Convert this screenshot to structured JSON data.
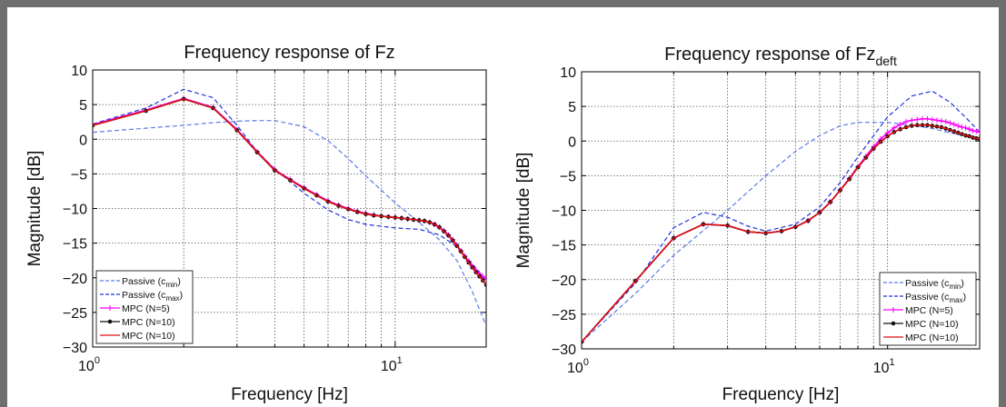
{
  "chart_data": [
    {
      "type": "line",
      "title": "Frequency response of Fz",
      "title_subscript": "",
      "xlabel": "Frequency [Hz]",
      "ylabel": "Magnitude [dB]",
      "xscale": "log",
      "xlim": [
        1,
        20
      ],
      "ylim": [
        -30,
        10
      ],
      "xticks": [
        1,
        10
      ],
      "xtick_labels": [
        {
          "base": "10",
          "exp": "0"
        },
        {
          "base": "10",
          "exp": "1"
        }
      ],
      "yticks": [
        10,
        5,
        0,
        -5,
        -10,
        -15,
        -20,
        -25,
        -30
      ],
      "ytick_labels": [
        "10",
        "5",
        "0",
        "−5",
        "−10",
        "−15",
        "−20",
        "−25",
        "−30"
      ],
      "grid": true,
      "legend_position": "bottom-left",
      "series": [
        {
          "name": "Passive (c",
          "name_subscript": "min",
          "name_suffix": ")",
          "color": "#5b7be8",
          "style": "dashed",
          "marker": "none",
          "x": [
            1,
            1.5,
            2,
            2.5,
            3,
            3.5,
            4,
            5,
            6,
            7,
            8,
            10,
            12,
            14,
            16,
            18,
            20
          ],
          "y": [
            1,
            1.6,
            2,
            2.4,
            2.6,
            2.7,
            2.7,
            1.8,
            -0.2,
            -2.8,
            -5.3,
            -9.2,
            -12,
            -14.5,
            -17.5,
            -22,
            -27
          ]
        },
        {
          "name": "Passive (c",
          "name_subscript": "max",
          "name_suffix": ")",
          "color": "#2233dd",
          "style": "dashed",
          "marker": "none",
          "x": [
            1,
            1.5,
            2,
            2.5,
            3,
            3.5,
            4,
            5,
            6,
            7,
            8,
            10,
            12,
            14,
            16,
            18,
            20
          ],
          "y": [
            2.2,
            4.5,
            7.2,
            6,
            2,
            -1.8,
            -4.3,
            -7.8,
            -10.2,
            -11.6,
            -12.3,
            -12.8,
            -13,
            -13.8,
            -15.5,
            -18,
            -20.5
          ]
        },
        {
          "name": "MPC (N=5)",
          "color": "#ff00ff",
          "style": "solid",
          "marker": "plus",
          "x": [
            1,
            1.5,
            2,
            2.5,
            3,
            3.5,
            4,
            4.5,
            5,
            5.5,
            6,
            6.5,
            7,
            7.5,
            8,
            8.5,
            9,
            9.5,
            10,
            10.5,
            11,
            11.5,
            12,
            12.5,
            13,
            13.5,
            14,
            14.5,
            15,
            15.5,
            16,
            16.5,
            17,
            17.5,
            18,
            18.5,
            19,
            19.5,
            20
          ],
          "y": [
            2.1,
            4.2,
            5.9,
            4.6,
            1.4,
            -1.8,
            -4.4,
            -5.8,
            -7,
            -8,
            -8.9,
            -9.5,
            -10,
            -10.4,
            -10.7,
            -10.9,
            -11.1,
            -11.2,
            -11.3,
            -11.4,
            -11.5,
            -11.6,
            -11.7,
            -11.8,
            -12,
            -12.3,
            -12.7,
            -13.2,
            -13.8,
            -14.5,
            -15.3,
            -16.1,
            -16.9,
            -17.6,
            -18.3,
            -18.9,
            -19.4,
            -19.8,
            -20.2
          ]
        },
        {
          "name": "MPC (N=10)",
          "color": "#111111",
          "style": "solid",
          "marker": "dot",
          "x": [
            1,
            1.5,
            2,
            2.5,
            3,
            3.5,
            4,
            4.5,
            5,
            5.5,
            6,
            6.5,
            7,
            7.5,
            8,
            8.5,
            9,
            9.5,
            10,
            10.5,
            11,
            11.5,
            12,
            12.5,
            13,
            13.5,
            14,
            14.5,
            15,
            15.5,
            16,
            16.5,
            17,
            17.5,
            18,
            18.5,
            19,
            19.5,
            20
          ],
          "y": [
            2,
            4.1,
            5.8,
            4.5,
            1.3,
            -1.9,
            -4.5,
            -5.9,
            -7.1,
            -8.1,
            -9,
            -9.6,
            -10.1,
            -10.5,
            -10.8,
            -11,
            -11.1,
            -11.2,
            -11.3,
            -11.4,
            -11.5,
            -11.6,
            -11.7,
            -11.8,
            -12,
            -12.3,
            -12.7,
            -13.3,
            -13.9,
            -14.6,
            -15.4,
            -16.2,
            -17,
            -17.8,
            -18.5,
            -19.2,
            -19.8,
            -20.4,
            -21
          ]
        },
        {
          "name": "MPC (N=10)",
          "color": "#dd1111",
          "style": "solid",
          "marker": "none",
          "x": [
            1,
            1.5,
            2,
            2.5,
            3,
            3.5,
            4,
            4.5,
            5,
            5.5,
            6,
            6.5,
            7,
            7.5,
            8,
            8.5,
            9,
            9.5,
            10,
            10.5,
            11,
            11.5,
            12,
            12.5,
            13,
            13.5,
            14,
            14.5,
            15,
            15.5,
            16,
            16.5,
            17,
            17.5,
            18,
            18.5,
            19,
            19.5,
            20
          ],
          "y": [
            2,
            4.1,
            5.8,
            4.5,
            1.3,
            -1.9,
            -4.5,
            -5.9,
            -7.1,
            -8.1,
            -9,
            -9.6,
            -10.1,
            -10.5,
            -10.8,
            -11,
            -11.1,
            -11.2,
            -11.3,
            -11.4,
            -11.5,
            -11.6,
            -11.7,
            -11.8,
            -12,
            -12.3,
            -12.7,
            -13.3,
            -13.9,
            -14.6,
            -15.4,
            -16.2,
            -17,
            -17.8,
            -18.5,
            -19.2,
            -19.8,
            -20.4,
            -21
          ]
        }
      ]
    },
    {
      "type": "line",
      "title": "Frequency response of Fz",
      "title_subscript": "deft",
      "xlabel": "Frequency [Hz]",
      "ylabel": "Magnitude [dB]",
      "xscale": "log",
      "xlim": [
        1,
        20
      ],
      "ylim": [
        -30,
        10
      ],
      "xticks": [
        1,
        10
      ],
      "xtick_labels": [
        {
          "base": "10",
          "exp": "0"
        },
        {
          "base": "10",
          "exp": "1"
        }
      ],
      "yticks": [
        10,
        5,
        0,
        -5,
        -10,
        -15,
        -20,
        -25,
        -30
      ],
      "ytick_labels": [
        "10",
        "5",
        "0",
        "−5",
        "−10",
        "−15",
        "−20",
        "−25",
        "−30"
      ],
      "grid": true,
      "legend_position": "bottom-right",
      "series": [
        {
          "name": "Passive (c",
          "name_subscript": "min",
          "name_suffix": ")",
          "color": "#5b7be8",
          "style": "dashed",
          "marker": "none",
          "x": [
            1,
            1.5,
            2,
            3,
            4,
            5,
            6,
            7,
            8,
            10,
            12,
            14,
            16,
            18,
            20
          ],
          "y": [
            -29,
            -22,
            -16.5,
            -10,
            -5,
            -1.5,
            0.8,
            2.2,
            2.7,
            2.7,
            2.3,
            1.8,
            1.2,
            0.7,
            0.3
          ]
        },
        {
          "name": "Passive (c",
          "name_subscript": "max",
          "name_suffix": ")",
          "color": "#2233dd",
          "style": "dashed",
          "marker": "none",
          "x": [
            1,
            1.5,
            2,
            2.5,
            3,
            3.5,
            4,
            5,
            6,
            7,
            8,
            10,
            12,
            14,
            16,
            18,
            20
          ],
          "y": [
            -29,
            -20.5,
            -12.5,
            -10.3,
            -11,
            -12.3,
            -13,
            -12,
            -9.5,
            -6,
            -2.3,
            3.5,
            6.5,
            7.2,
            5.6,
            3.4,
            1.3
          ]
        },
        {
          "name": "MPC (N=5)",
          "color": "#ff00ff",
          "style": "solid",
          "marker": "plus",
          "x": [
            1,
            1.5,
            2,
            2.5,
            3,
            3.5,
            4,
            4.5,
            5,
            5.5,
            6,
            6.5,
            7,
            7.5,
            8,
            8.5,
            9,
            9.5,
            10,
            10.5,
            11,
            11.5,
            12,
            12.5,
            13,
            13.5,
            14,
            14.5,
            15,
            15.5,
            16,
            16.5,
            17,
            17.5,
            18,
            18.5,
            19,
            19.5,
            20
          ],
          "y": [
            -29,
            -20.2,
            -14,
            -12,
            -12.2,
            -13.1,
            -13.3,
            -13,
            -12.4,
            -11.5,
            -10.3,
            -8.8,
            -7.1,
            -5.4,
            -3.7,
            -2.2,
            -0.8,
            0.3,
            1.2,
            1.9,
            2.4,
            2.8,
            3,
            3.1,
            3.2,
            3.2,
            3.1,
            3,
            2.9,
            2.8,
            2.6,
            2.4,
            2.2,
            2,
            1.9,
            1.7,
            1.5,
            1.4,
            1.3
          ]
        },
        {
          "name": "MPC (N=10)",
          "color": "#111111",
          "style": "solid",
          "marker": "dot",
          "x": [
            1,
            1.5,
            2,
            2.5,
            3,
            3.5,
            4,
            4.5,
            5,
            5.5,
            6,
            6.5,
            7,
            7.5,
            8,
            8.5,
            9,
            9.5,
            10,
            10.5,
            11,
            11.5,
            12,
            12.5,
            13,
            13.5,
            14,
            14.5,
            15,
            15.5,
            16,
            16.5,
            17,
            17.5,
            18,
            18.5,
            19,
            19.5,
            20
          ],
          "y": [
            -29,
            -20.2,
            -14,
            -12,
            -12.2,
            -13.1,
            -13.3,
            -13,
            -12.4,
            -11.5,
            -10.3,
            -8.8,
            -7.1,
            -5.5,
            -3.8,
            -2.4,
            -1.1,
            -0.1,
            0.7,
            1.3,
            1.7,
            2,
            2.2,
            2.3,
            2.3,
            2.3,
            2.2,
            2.1,
            2,
            1.8,
            1.6,
            1.4,
            1.2,
            1,
            0.8,
            0.7,
            0.5,
            0.4,
            0.3
          ]
        },
        {
          "name": "MPC (N=10)",
          "color": "#dd1111",
          "style": "solid",
          "marker": "none",
          "x": [
            1,
            1.5,
            2,
            2.5,
            3,
            3.5,
            4,
            4.5,
            5,
            5.5,
            6,
            6.5,
            7,
            7.5,
            8,
            8.5,
            9,
            9.5,
            10,
            10.5,
            11,
            11.5,
            12,
            12.5,
            13,
            13.5,
            14,
            14.5,
            15,
            15.5,
            16,
            16.5,
            17,
            17.5,
            18,
            18.5,
            19,
            19.5,
            20
          ],
          "y": [
            -29,
            -20.2,
            -14,
            -12,
            -12.2,
            -13.1,
            -13.3,
            -13,
            -12.4,
            -11.5,
            -10.3,
            -8.8,
            -7.1,
            -5.5,
            -3.8,
            -2.4,
            -1.1,
            -0.1,
            0.7,
            1.3,
            1.7,
            2,
            2.2,
            2.3,
            2.3,
            2.3,
            2.2,
            2.1,
            2,
            1.8,
            1.6,
            1.4,
            1.2,
            1,
            0.8,
            0.7,
            0.5,
            0.4,
            0.3
          ]
        }
      ]
    }
  ]
}
